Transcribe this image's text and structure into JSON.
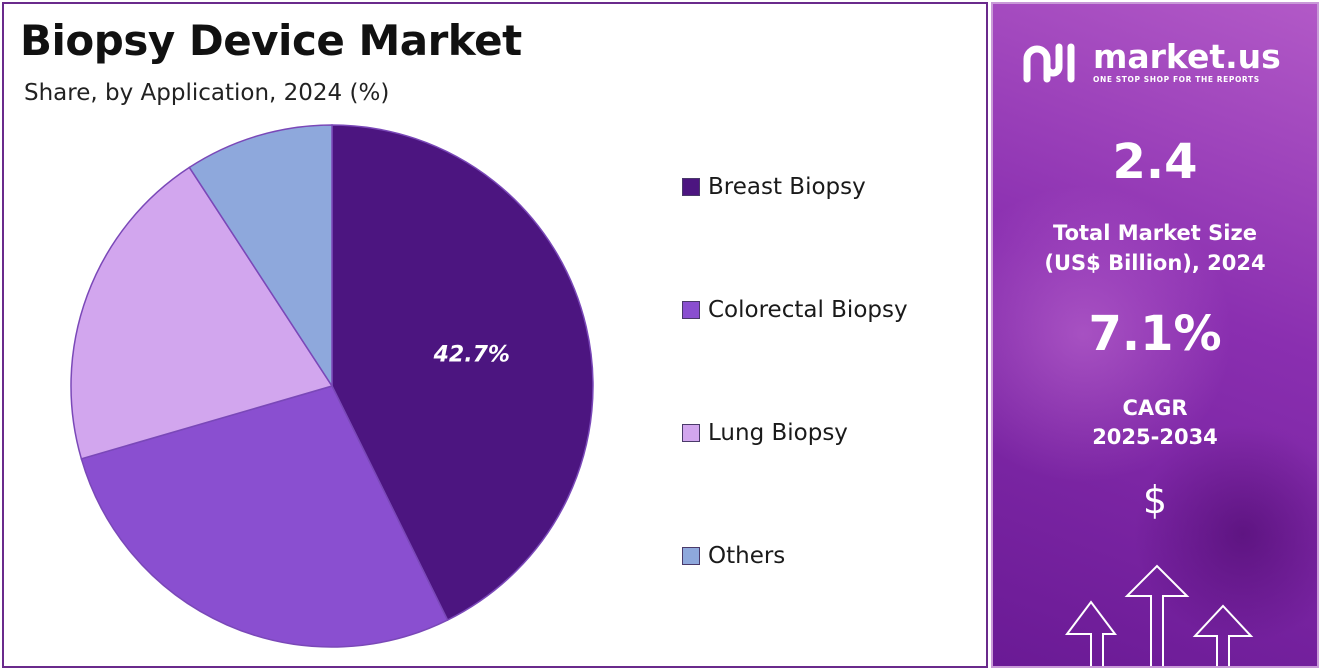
{
  "title": "Biopsy Device Market",
  "subtitle": "Share, by Application, 2024 (%)",
  "chart_data": {
    "type": "pie",
    "title": "Biopsy Device Market",
    "subtitle": "Share, by Application, 2024 (%)",
    "categories": [
      "Breast Biopsy",
      "Colorectal Biopsy",
      "Lung Biopsy",
      "Others"
    ],
    "values": [
      42.7,
      27.8,
      20.3,
      9.2
    ],
    "data_labels": [
      "42.7%",
      "",
      "",
      ""
    ],
    "colors": [
      "#4c1580",
      "#8a4fd0",
      "#d2a6ee",
      "#8ea8dc"
    ],
    "legend_position": "right",
    "start_angle_deg": 0,
    "direction": "clockwise"
  },
  "sidebar": {
    "brand": "market.us",
    "tagline": "ONE STOP SHOP FOR THE REPORTS",
    "market_size_value": "2.4",
    "market_size_label_line1": "Total Market Size",
    "market_size_label_line2": "(US$ Billion), 2024",
    "cagr_value": "7.1%",
    "cagr_label_line1": "CAGR",
    "cagr_label_line2": "2025-2034",
    "currency_symbol": "$"
  }
}
